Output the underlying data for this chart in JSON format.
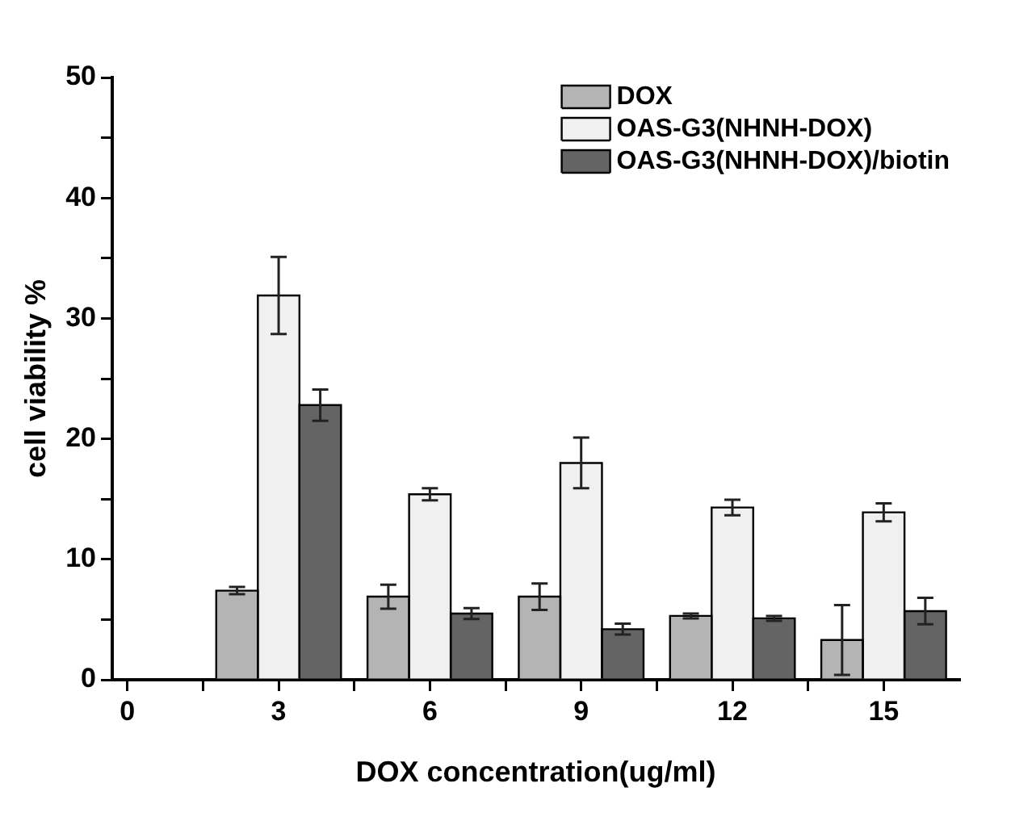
{
  "chart_data": {
    "type": "bar",
    "xlabel": "DOX concentration(ug/ml)",
    "ylabel": "cell viability %",
    "x": [
      3,
      6,
      9,
      12,
      15
    ],
    "series": [
      {
        "name": "DOX",
        "color": "#b4b4b4",
        "values": [
          7.4,
          6.9,
          6.9,
          5.3,
          3.3
        ],
        "errors": [
          0.3,
          1.0,
          1.1,
          0.2,
          2.9
        ]
      },
      {
        "name": "OAS-G3(NHNH-DOX)",
        "color": "#f0f0f0",
        "values": [
          31.9,
          15.4,
          18.0,
          14.3,
          13.9
        ],
        "errors": [
          3.2,
          0.5,
          2.1,
          0.65,
          0.75
        ]
      },
      {
        "name": "OAS-G3(NHNH-DOX)/biotin",
        "color": "#646464",
        "values": [
          22.8,
          5.5,
          4.2,
          5.1,
          5.7
        ],
        "errors": [
          1.3,
          0.45,
          0.45,
          0.2,
          1.1
        ]
      }
    ],
    "xlim": [
      -0.3,
      16.5
    ],
    "xticks": [
      0,
      {
        "value": 1.5,
        "label": null
      },
      3,
      {
        "value": 4.5,
        "label": null
      },
      6,
      {
        "value": 7.5,
        "label": null
      },
      9,
      {
        "value": 10.5,
        "label": null
      },
      12,
      {
        "value": 13.5,
        "label": null
      },
      15
    ],
    "ylim": [
      0,
      50
    ],
    "yticks": [
      0,
      {
        "value": 5,
        "label": null
      },
      10,
      {
        "value": 15,
        "label": null
      },
      20,
      {
        "value": 25,
        "label": null
      },
      30,
      {
        "value": 35,
        "label": null
      },
      40,
      {
        "value": 45,
        "label": null
      },
      50
    ],
    "grid": false,
    "legend": "top right"
  }
}
